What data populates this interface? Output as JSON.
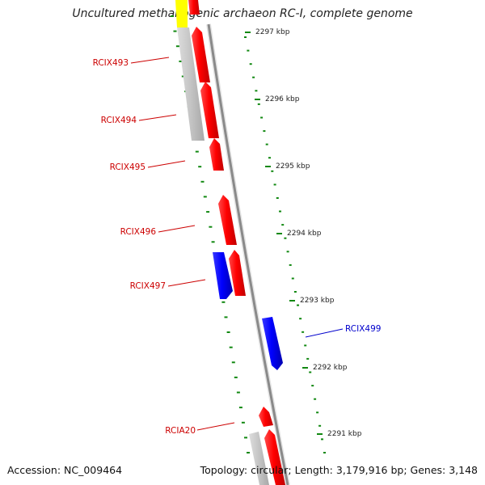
{
  "title": "Uncultured methanogenic archaeon RC-I, complete genome",
  "footer": {
    "accession": "Accession: NC_009464",
    "summary": "Topology: circular; Length: 3,179,916 bp; Genes: 3,148"
  },
  "colors": {
    "forward_gene": "#ff0000",
    "reverse_gene": "#0000ff",
    "other_feature": "#c0c0c0",
    "highlight": "#ffff00",
    "ruler": "#118811",
    "backbone": "#888888"
  },
  "ruler_labels": [
    "2297 kbp",
    "2296 kbp",
    "2295 kbp",
    "2294 kbp",
    "2293 kbp",
    "2292 kbp",
    "2291 kbp"
  ],
  "gene_labels": [
    "RCIX493",
    "RCIX494",
    "RCIX495",
    "RCIX496",
    "RCIX497",
    "RCIX499",
    "RCIA20"
  ]
}
